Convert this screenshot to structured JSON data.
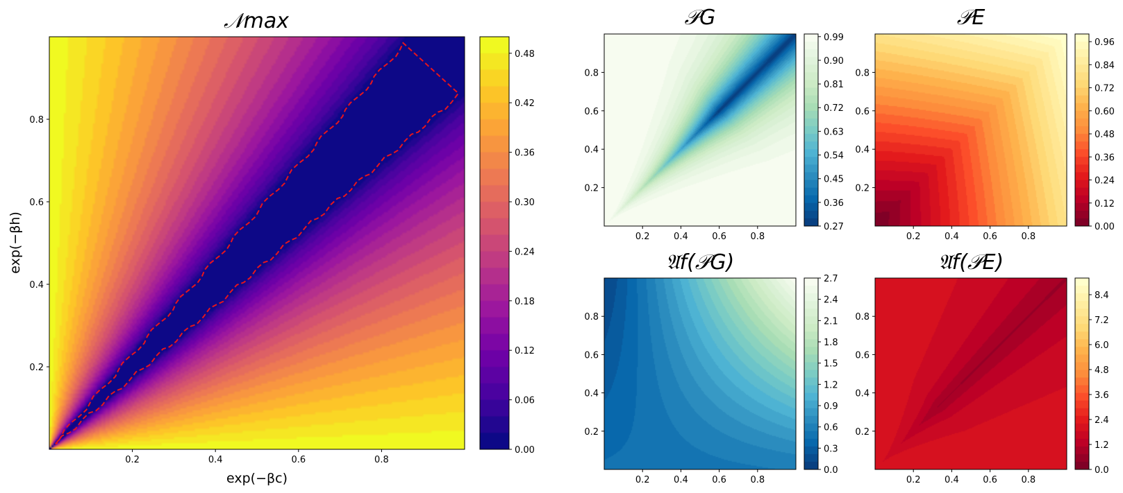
{
  "chart_data": [
    {
      "id": "nmax",
      "type": "heatmap",
      "subtype": "filled-contour",
      "title": "𝒩max",
      "xlabel": "exp(−βc)",
      "ylabel": "exp(−βh)",
      "xlim": [
        0,
        1
      ],
      "ylim": [
        0,
        1
      ],
      "xticks": [
        "0.2",
        "0.4",
        "0.6",
        "0.8"
      ],
      "yticks": [
        "0.2",
        "0.4",
        "0.6",
        "0.8"
      ],
      "colormap": "plasma",
      "colorbar_ticks": [
        "0.00",
        "0.06",
        "0.12",
        "0.18",
        "0.24",
        "0.30",
        "0.36",
        "0.42",
        "0.48"
      ],
      "color_range": [
        0,
        0.5
      ],
      "overlay": {
        "style": "dashed",
        "color": "#e8141c",
        "description": "boundary of zero region"
      }
    },
    {
      "id": "pg",
      "type": "heatmap",
      "subtype": "filled-contour",
      "title": "𝒫G",
      "xlim": [
        0,
        1
      ],
      "ylim": [
        0,
        1
      ],
      "xticks": [
        "0.2",
        "0.4",
        "0.6",
        "0.8"
      ],
      "yticks": [
        "0.2",
        "0.4",
        "0.6",
        "0.8"
      ],
      "colormap": "GnBu_r",
      "colorbar_ticks": [
        "0.27",
        "0.36",
        "0.45",
        "0.54",
        "0.63",
        "0.72",
        "0.81",
        "0.90",
        "0.99"
      ],
      "color_range": [
        0.27,
        1.0
      ]
    },
    {
      "id": "pe",
      "type": "heatmap",
      "subtype": "filled-contour",
      "title": "𝒫E",
      "xlim": [
        0,
        1
      ],
      "ylim": [
        0,
        1
      ],
      "xticks": [
        "0.2",
        "0.4",
        "0.6",
        "0.8"
      ],
      "yticks": [
        "0.2",
        "0.4",
        "0.6",
        "0.8"
      ],
      "colormap": "YlOrRd_r",
      "colorbar_ticks": [
        "0.00",
        "0.12",
        "0.24",
        "0.36",
        "0.48",
        "0.60",
        "0.72",
        "0.84",
        "0.96"
      ],
      "color_range": [
        0,
        1.0
      ]
    },
    {
      "id": "afpg",
      "type": "heatmap",
      "subtype": "filled-contour",
      "title": "𝔄f(𝒫G)",
      "xlim": [
        0,
        1
      ],
      "ylim": [
        0,
        1
      ],
      "xticks": [
        "0.2",
        "0.4",
        "0.6",
        "0.8"
      ],
      "yticks": [
        "0.2",
        "0.4",
        "0.6",
        "0.8"
      ],
      "colormap": "GnBu_r",
      "colorbar_ticks": [
        "0.0",
        "0.3",
        "0.6",
        "0.9",
        "1.2",
        "1.5",
        "1.8",
        "2.1",
        "2.4",
        "2.7"
      ],
      "color_range": [
        0,
        2.7
      ]
    },
    {
      "id": "afpe",
      "type": "heatmap",
      "subtype": "filled-contour",
      "title": "𝔄f(𝒫E)",
      "xlim": [
        0,
        1
      ],
      "ylim": [
        0,
        1
      ],
      "xticks": [
        "0.2",
        "0.4",
        "0.6",
        "0.8"
      ],
      "yticks": [
        "0.2",
        "0.4",
        "0.6",
        "0.8"
      ],
      "colormap": "YlOrRd_r",
      "colorbar_ticks": [
        "0.0",
        "1.2",
        "2.4",
        "3.6",
        "4.8",
        "6.0",
        "7.2",
        "8.4"
      ],
      "color_range": [
        0,
        9.2
      ]
    }
  ]
}
